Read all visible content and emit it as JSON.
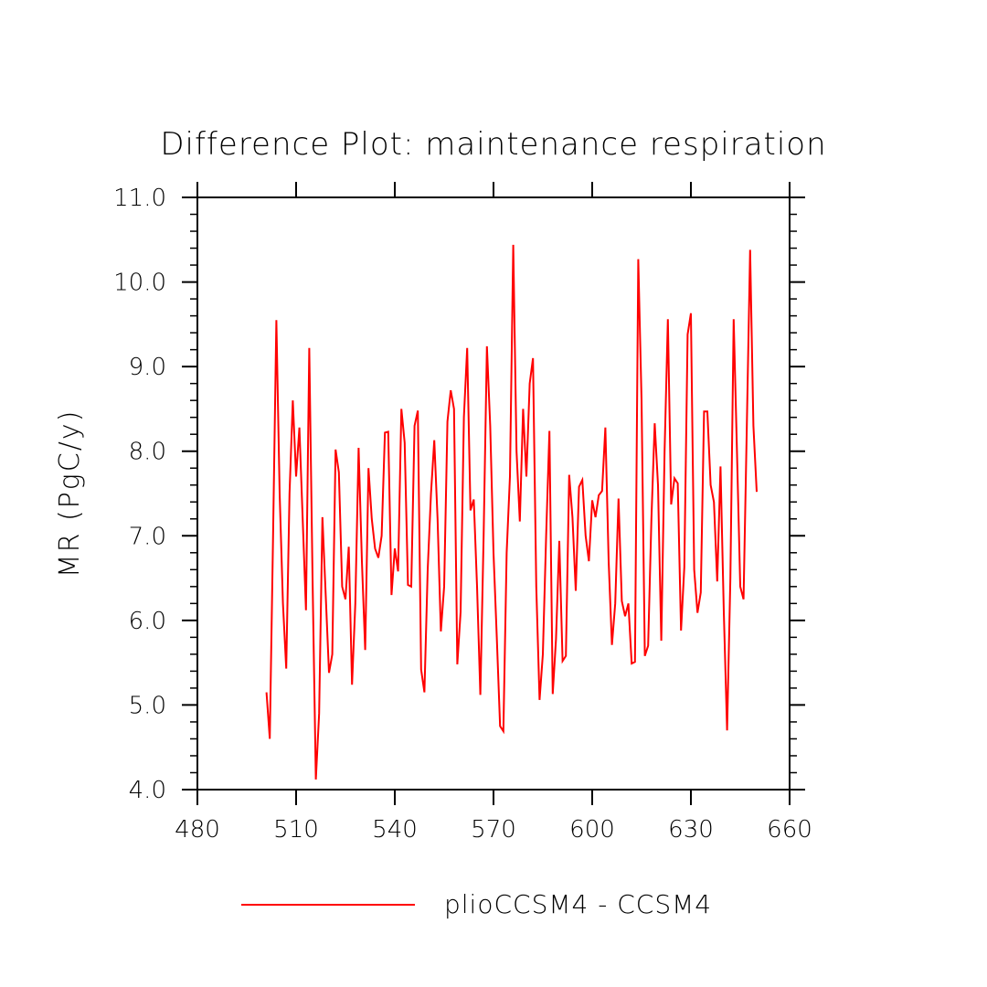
{
  "chart_data": {
    "type": "line",
    "title": "Difference Plot: maintenance respiration",
    "xlabel": "",
    "ylabel": "MR  (PgC/y)",
    "xlim": [
      480,
      660
    ],
    "ylim": [
      4.0,
      11.0
    ],
    "x_ticks": [
      "480",
      "510",
      "540",
      "570",
      "600",
      "630",
      "660"
    ],
    "y_ticks": [
      "4.0",
      "5.0",
      "6.0",
      "7.0",
      "8.0",
      "9.0",
      "10.0",
      "11.0"
    ],
    "grid": false,
    "legend_position": "bottom",
    "series": [
      {
        "name": "plioCCSM4 - CCSM4",
        "color": "#ff0000",
        "x": [
          501,
          502,
          503,
          504,
          505,
          506,
          507,
          508,
          509,
          510,
          511,
          512,
          513,
          514,
          515,
          516,
          517,
          518,
          519,
          520,
          521,
          522,
          523,
          524,
          525,
          526,
          527,
          528,
          529,
          530,
          531,
          532,
          533,
          534,
          535,
          536,
          537,
          538,
          539,
          540,
          541,
          542,
          543,
          544,
          545,
          546,
          547,
          548,
          549,
          550,
          551,
          552,
          553,
          554,
          555,
          556,
          557,
          558,
          559,
          560,
          561,
          562,
          563,
          564,
          565,
          566,
          567,
          568,
          569,
          570,
          571,
          572,
          573,
          574,
          575,
          576,
          577,
          578,
          579,
          580,
          581,
          582,
          583,
          584,
          585,
          586,
          587,
          588,
          589,
          590,
          591,
          592,
          593,
          594,
          595,
          596,
          597,
          598,
          599,
          600,
          601,
          602,
          603,
          604,
          605,
          606,
          607,
          608,
          609,
          610,
          611,
          612,
          613,
          614,
          615,
          616,
          617,
          618,
          619,
          620,
          621,
          622,
          623,
          624,
          625,
          626,
          627,
          628,
          629,
          630,
          631,
          632,
          633,
          634,
          635,
          636,
          637,
          638,
          639,
          640,
          641,
          642,
          643,
          644,
          645,
          646,
          647,
          648,
          649,
          650
        ],
        "y": [
          5.15,
          4.6,
          7.0,
          9.55,
          7.5,
          6.2,
          5.43,
          7.5,
          8.6,
          7.7,
          8.28,
          7.2,
          6.12,
          9.22,
          6.5,
          4.12,
          4.9,
          7.22,
          6.3,
          5.38,
          5.6,
          8.02,
          7.75,
          6.4,
          6.25,
          6.87,
          5.24,
          6.2,
          8.04,
          6.7,
          5.65,
          7.8,
          7.2,
          6.85,
          6.74,
          7.0,
          8.22,
          8.23,
          6.3,
          6.85,
          6.58,
          8.5,
          8.1,
          6.42,
          6.4,
          8.3,
          8.48,
          5.42,
          5.15,
          6.6,
          7.5,
          8.13,
          7.2,
          5.87,
          6.4,
          8.35,
          8.72,
          8.5,
          5.48,
          6.1,
          8.4,
          9.22,
          7.3,
          7.43,
          6.4,
          5.12,
          7.0,
          9.24,
          8.3,
          6.8,
          5.8,
          4.75,
          4.69,
          6.8,
          7.7,
          10.44,
          8.0,
          7.17,
          8.5,
          7.7,
          8.8,
          9.1,
          6.4,
          5.06,
          5.6,
          7.0,
          8.24,
          5.13,
          5.78,
          6.94,
          5.52,
          5.58,
          7.72,
          7.22,
          6.35,
          7.58,
          7.66,
          7.0,
          6.7,
          7.42,
          7.22,
          7.48,
          7.53,
          8.28,
          6.7,
          5.71,
          6.2,
          7.44,
          6.23,
          6.05,
          6.2,
          5.49,
          5.51,
          10.27,
          8.6,
          5.58,
          5.7,
          7.2,
          8.33,
          7.6,
          5.76,
          8.0,
          9.56,
          7.37,
          7.68,
          7.62,
          5.88,
          6.63,
          9.38,
          9.63,
          6.6,
          6.09,
          6.33,
          8.47,
          8.47,
          7.6,
          7.4,
          6.46,
          7.82,
          6.1,
          4.7,
          6.5,
          9.56,
          8.0,
          6.4,
          6.25,
          8.3,
          10.38,
          8.3,
          7.52
        ]
      }
    ]
  }
}
